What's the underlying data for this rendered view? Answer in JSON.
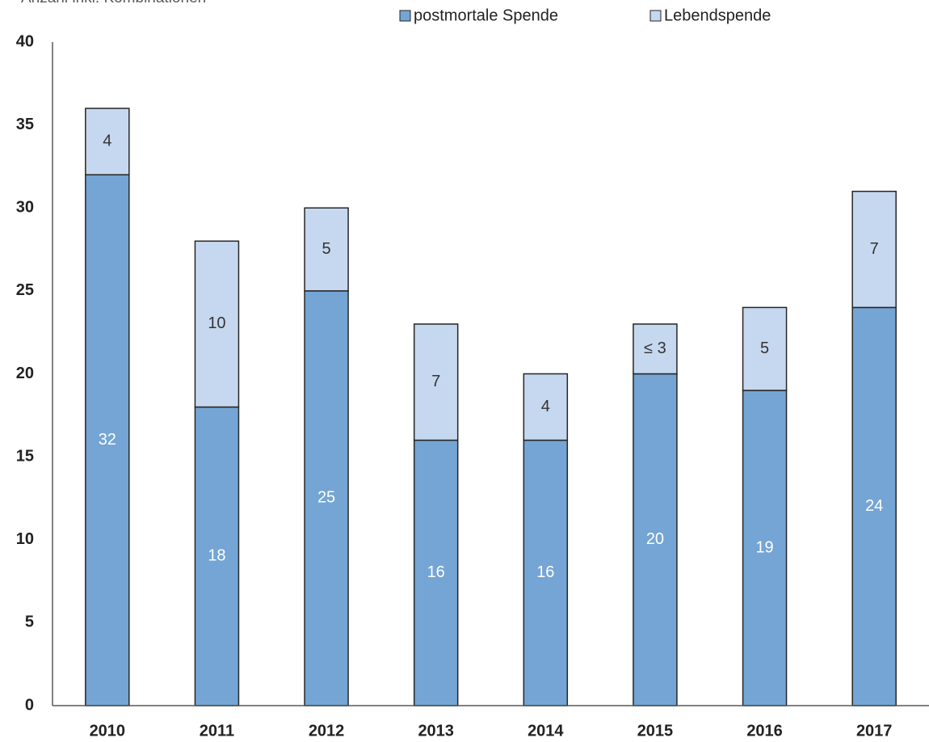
{
  "chart_data": {
    "type": "stacked_bar",
    "y_axis_label": "Anzahl inkl. Kombinationen",
    "categories": [
      "2010",
      "2011",
      "2012",
      "2013",
      "2014",
      "2015",
      "2016",
      "2017"
    ],
    "series": [
      {
        "name": "postmortale Spende",
        "color": "#74a5d4",
        "values": [
          32,
          18,
          25,
          16,
          16,
          20,
          19,
          24
        ]
      },
      {
        "name": "Lebendspende",
        "color": "#c6d8ef",
        "values": [
          4,
          10,
          5,
          7,
          4,
          3,
          5,
          7
        ],
        "value_labels": [
          "4",
          "10",
          "5",
          "7",
          "4",
          "≤ 3",
          "5",
          "7"
        ]
      }
    ],
    "ylim": [
      0,
      40
    ],
    "yticks": [
      0,
      5,
      10,
      15,
      20,
      25,
      30,
      35,
      40
    ],
    "grid": false,
    "legend": "top"
  }
}
